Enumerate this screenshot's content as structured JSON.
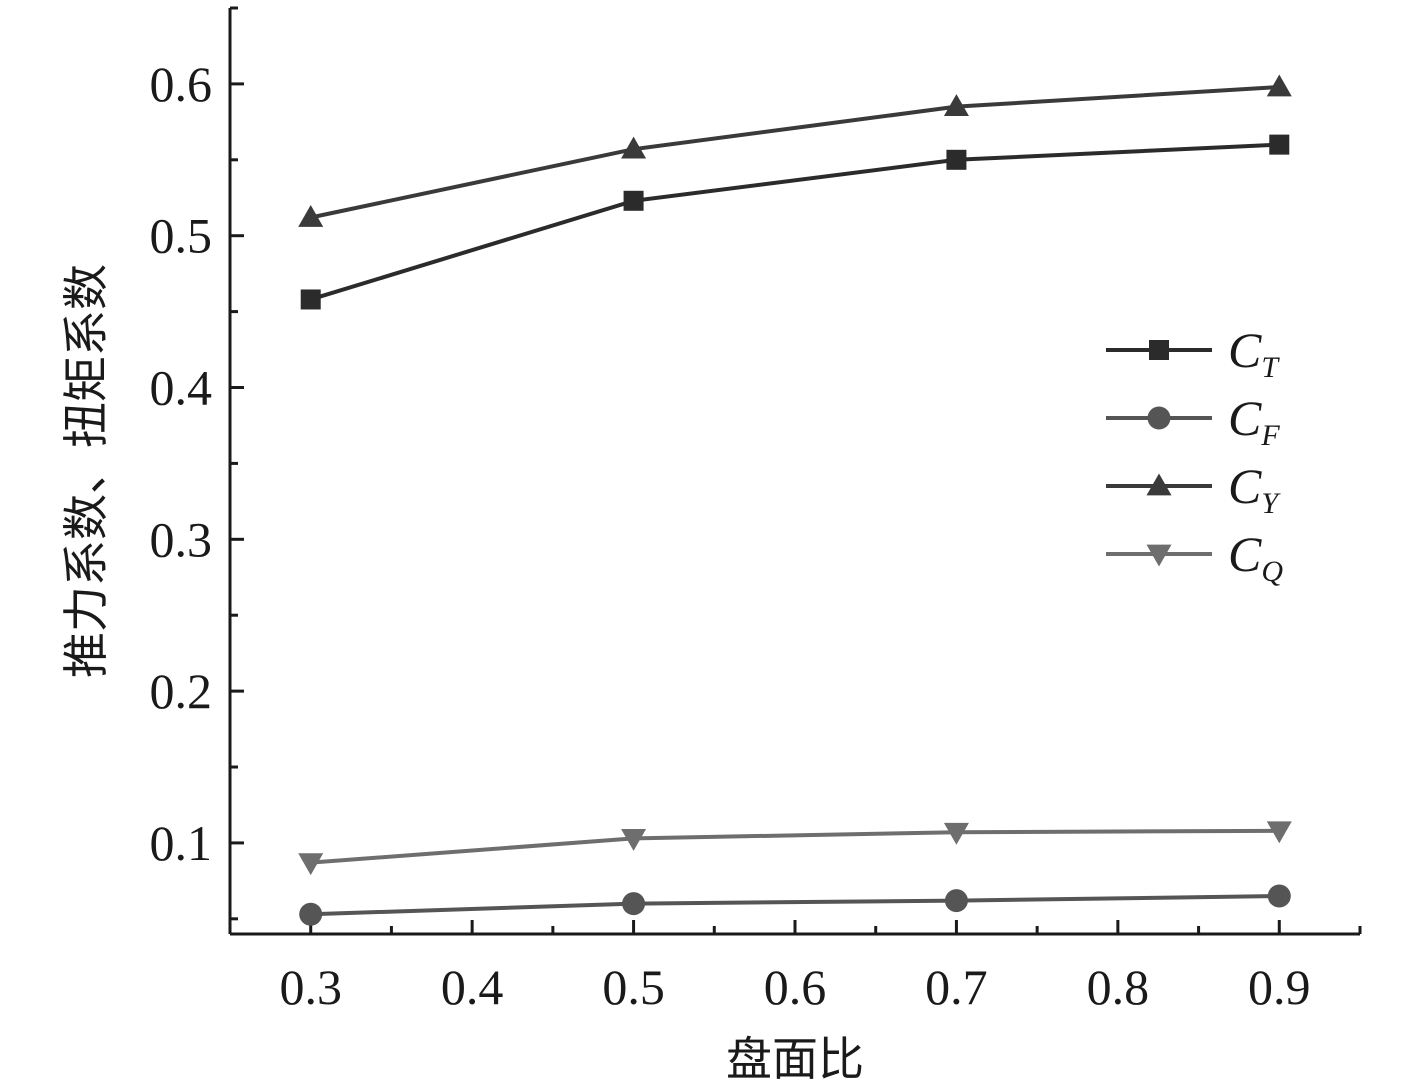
{
  "chart_data": {
    "type": "line",
    "title": "",
    "xlabel": "盘面比",
    "ylabel": "推力系数、扭矩系数",
    "x": [
      0.3,
      0.5,
      0.7,
      0.9
    ],
    "xlim": [
      0.25,
      0.95
    ],
    "ylim": [
      0.04,
      0.65
    ],
    "x_ticks": [
      0.3,
      0.4,
      0.5,
      0.6,
      0.7,
      0.8,
      0.9
    ],
    "x_tick_labels": [
      "0.3",
      "0.4",
      "0.5",
      "0.6",
      "0.7",
      "0.8",
      "0.9"
    ],
    "y_ticks": [
      0.1,
      0.2,
      0.3,
      0.4,
      0.5,
      0.6
    ],
    "y_tick_labels": [
      "0.1",
      "0.2",
      "0.3",
      "0.4",
      "0.5",
      "0.6"
    ],
    "grid": false,
    "legend_position": "right",
    "series": [
      {
        "name": "C_T",
        "label_main": "C",
        "label_sub": "T",
        "marker": "square",
        "color": "#2b2b2b",
        "values": [
          0.458,
          0.523,
          0.55,
          0.56
        ]
      },
      {
        "name": "C_F",
        "label_main": "C",
        "label_sub": "F",
        "marker": "circle",
        "color": "#555555",
        "values": [
          0.053,
          0.06,
          0.062,
          0.065
        ]
      },
      {
        "name": "C_Y",
        "label_main": "C",
        "label_sub": "Y",
        "marker": "triangle-up",
        "color": "#3a3a3a",
        "values": [
          0.512,
          0.557,
          0.585,
          0.598
        ]
      },
      {
        "name": "C_Q",
        "label_main": "C",
        "label_sub": "Q",
        "marker": "triangle-down",
        "color": "#6e6e6e",
        "values": [
          0.087,
          0.103,
          0.107,
          0.108
        ]
      }
    ]
  }
}
